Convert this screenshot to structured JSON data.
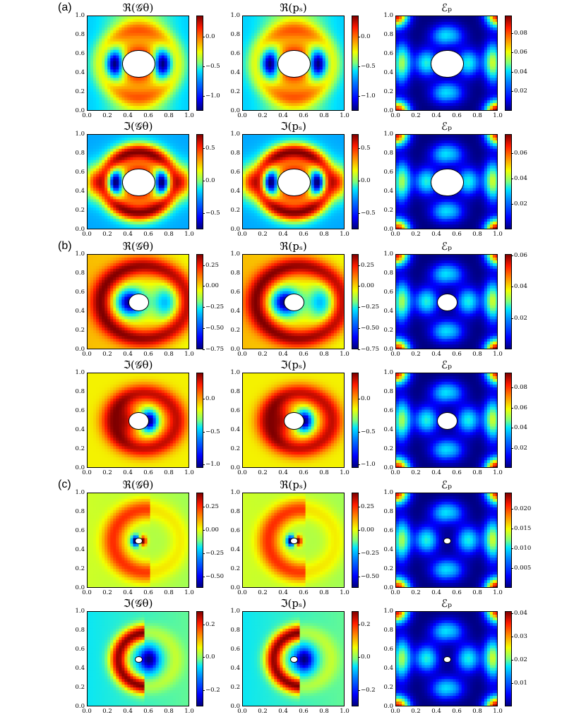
{
  "panel_labels": [
    "(a)",
    "(b)",
    "(c)"
  ],
  "colormap": [
    "#00007f",
    "#0000ff",
    "#0080ff",
    "#00e5ff",
    "#7dff7a",
    "#f3ff00",
    "#ff8c00",
    "#ff1a00",
    "#7f0000"
  ],
  "axis_ticks": {
    "x": [
      "0.0",
      "0.2",
      "0.4",
      "0.6",
      "0.8",
      "1.0"
    ],
    "y": [
      "0.0",
      "0.2",
      "0.4",
      "0.6",
      "0.8",
      "1.0"
    ]
  },
  "chart_data": [
    {
      "type": "heatmap",
      "panel": "(a)",
      "title": "ℜ(𝒢θ)",
      "xlim": [
        0,
        1
      ],
      "ylim": [
        0,
        1
      ],
      "cbar_ticks": [
        "0.0",
        "−0.5",
        "−1.0"
      ],
      "cbar_values": [
        0.0,
        -0.5,
        -1.0
      ],
      "cbar_range": [
        -1.25,
        0.35
      ],
      "hole": {
        "cx": 0.5,
        "cy": 0.5,
        "r": 0.16
      },
      "pattern": "dipole-real"
    },
    {
      "type": "heatmap",
      "panel": "(a)",
      "title": "ℜ(pₛ)",
      "xlim": [
        0,
        1
      ],
      "ylim": [
        0,
        1
      ],
      "cbar_ticks": [
        "0.0",
        "−0.5",
        "−1.0"
      ],
      "cbar_values": [
        0.0,
        -0.5,
        -1.0
      ],
      "cbar_range": [
        -1.25,
        0.35
      ],
      "hole": {
        "cx": 0.5,
        "cy": 0.5,
        "r": 0.16
      },
      "pattern": "dipole-real"
    },
    {
      "type": "heatmap",
      "panel": "(a)",
      "title": "ℰₚ",
      "xlim": [
        0,
        1
      ],
      "ylim": [
        0,
        1
      ],
      "cbar_ticks": [
        "0.08",
        "0.06",
        "0.04",
        "0.02"
      ],
      "cbar_values": [
        0.08,
        0.06,
        0.04,
        0.02
      ],
      "cbar_range": [
        0.0,
        0.098
      ],
      "hole": {
        "cx": 0.5,
        "cy": 0.5,
        "r": 0.16
      },
      "pattern": "error"
    },
    {
      "type": "heatmap",
      "panel": "(a)",
      "title": "ℑ(𝒢θ)",
      "xlim": [
        0,
        1
      ],
      "ylim": [
        0,
        1
      ],
      "cbar_ticks": [
        "0.5",
        "0.0",
        "−0.5"
      ],
      "cbar_values": [
        0.5,
        0.0,
        -0.5
      ],
      "cbar_range": [
        -0.75,
        0.72
      ],
      "hole": {
        "cx": 0.5,
        "cy": 0.5,
        "r": 0.16
      },
      "pattern": "dipole-imag"
    },
    {
      "type": "heatmap",
      "panel": "(a)",
      "title": "ℑ(pₛ)",
      "xlim": [
        0,
        1
      ],
      "ylim": [
        0,
        1
      ],
      "cbar_ticks": [
        "0.5",
        "0.0",
        "−0.5"
      ],
      "cbar_values": [
        0.5,
        0.0,
        -0.5
      ],
      "cbar_range": [
        -0.75,
        0.72
      ],
      "hole": {
        "cx": 0.5,
        "cy": 0.5,
        "r": 0.16
      },
      "pattern": "dipole-imag"
    },
    {
      "type": "heatmap",
      "panel": "(a)",
      "title": "ℰₚ",
      "xlim": [
        0,
        1
      ],
      "ylim": [
        0,
        1
      ],
      "cbar_ticks": [
        "0.06",
        "0.04",
        "0.02"
      ],
      "cbar_values": [
        0.06,
        0.04,
        0.02
      ],
      "cbar_range": [
        0.0,
        0.075
      ],
      "hole": {
        "cx": 0.5,
        "cy": 0.5,
        "r": 0.16
      },
      "pattern": "error"
    },
    {
      "type": "heatmap",
      "panel": "(b)",
      "title": "ℜ(𝒢θ)",
      "xlim": [
        0,
        1
      ],
      "ylim": [
        0,
        1
      ],
      "cbar_ticks": [
        "0.25",
        "0.00",
        "−0.25",
        "−0.50",
        "−0.75"
      ],
      "cbar_values": [
        0.25,
        0.0,
        -0.25,
        -0.5,
        -0.75
      ],
      "cbar_range": [
        -0.75,
        0.38
      ],
      "hole": {
        "cx": 0.5,
        "cy": 0.5,
        "r": 0.1
      },
      "pattern": "ring-real"
    },
    {
      "type": "heatmap",
      "panel": "(b)",
      "title": "ℜ(pₛ)",
      "xlim": [
        0,
        1
      ],
      "ylim": [
        0,
        1
      ],
      "cbar_ticks": [
        "0.25",
        "0.00",
        "−0.25",
        "−0.50",
        "−0.75"
      ],
      "cbar_values": [
        0.25,
        0.0,
        -0.25,
        -0.5,
        -0.75
      ],
      "cbar_range": [
        -0.75,
        0.38
      ],
      "hole": {
        "cx": 0.5,
        "cy": 0.5,
        "r": 0.1
      },
      "pattern": "ring-real"
    },
    {
      "type": "heatmap",
      "panel": "(b)",
      "title": "ℰₚ",
      "xlim": [
        0,
        1
      ],
      "ylim": [
        0,
        1
      ],
      "cbar_ticks": [
        "0.06",
        "0.04",
        "0.02"
      ],
      "cbar_values": [
        0.06,
        0.04,
        0.02
      ],
      "cbar_range": [
        0.0,
        0.061
      ],
      "hole": {
        "cx": 0.5,
        "cy": 0.5,
        "r": 0.1
      },
      "pattern": "error"
    },
    {
      "type": "heatmap",
      "panel": "(b)",
      "title": "ℑ(𝒢θ)",
      "xlim": [
        0,
        1
      ],
      "ylim": [
        0,
        1
      ],
      "cbar_ticks": [
        "0.0",
        "−0.5",
        "−1.0"
      ],
      "cbar_values": [
        0.0,
        -0.5,
        -1.0
      ],
      "cbar_range": [
        -1.05,
        0.4
      ],
      "hole": {
        "cx": 0.5,
        "cy": 0.5,
        "r": 0.1
      },
      "pattern": "ring-imag"
    },
    {
      "type": "heatmap",
      "panel": "(b)",
      "title": "ℑ(pₛ)",
      "xlim": [
        0,
        1
      ],
      "ylim": [
        0,
        1
      ],
      "cbar_ticks": [
        "0.0",
        "−0.5",
        "−1.0"
      ],
      "cbar_values": [
        0.0,
        -0.5,
        -1.0
      ],
      "cbar_range": [
        -1.05,
        0.4
      ],
      "hole": {
        "cx": 0.5,
        "cy": 0.5,
        "r": 0.1
      },
      "pattern": "ring-imag"
    },
    {
      "type": "heatmap",
      "panel": "(b)",
      "title": "ℰₚ",
      "xlim": [
        0,
        1
      ],
      "ylim": [
        0,
        1
      ],
      "cbar_ticks": [
        "0.08",
        "0.06",
        "0.04",
        "0.02"
      ],
      "cbar_values": [
        0.08,
        0.06,
        0.04,
        0.02
      ],
      "cbar_range": [
        0.0,
        0.095
      ],
      "hole": {
        "cx": 0.5,
        "cy": 0.5,
        "r": 0.1
      },
      "pattern": "error"
    },
    {
      "type": "heatmap",
      "panel": "(c)",
      "title": "ℜ(𝒢θ)",
      "xlim": [
        0,
        1
      ],
      "ylim": [
        0,
        1
      ],
      "cbar_ticks": [
        "0.25",
        "0.00",
        "−0.25",
        "−0.50"
      ],
      "cbar_values": [
        0.25,
        0.0,
        -0.25,
        -0.5
      ],
      "cbar_range": [
        -0.62,
        0.4
      ],
      "hole": {
        "cx": 0.5,
        "cy": 0.5,
        "r": 0.035
      },
      "pattern": "crescent-real"
    },
    {
      "type": "heatmap",
      "panel": "(c)",
      "title": "ℜ(pₛ)",
      "xlim": [
        0,
        1
      ],
      "ylim": [
        0,
        1
      ],
      "cbar_ticks": [
        "0.25",
        "0.00",
        "−0.25",
        "−0.50"
      ],
      "cbar_values": [
        0.25,
        0.0,
        -0.25,
        -0.5
      ],
      "cbar_range": [
        -0.62,
        0.4
      ],
      "hole": {
        "cx": 0.5,
        "cy": 0.5,
        "r": 0.035
      },
      "pattern": "crescent-real"
    },
    {
      "type": "heatmap",
      "panel": "(c)",
      "title": "ℰₚ",
      "xlim": [
        0,
        1
      ],
      "ylim": [
        0,
        1
      ],
      "cbar_ticks": [
        "0.020",
        "0.015",
        "0.010",
        "0.005"
      ],
      "cbar_values": [
        0.02,
        0.015,
        0.01,
        0.005
      ],
      "cbar_range": [
        0.0,
        0.024
      ],
      "hole": {
        "cx": 0.5,
        "cy": 0.5,
        "r": 0.035
      },
      "pattern": "error"
    },
    {
      "type": "heatmap",
      "panel": "(c)",
      "title": "ℑ(𝒢θ)",
      "xlim": [
        0,
        1
      ],
      "ylim": [
        0,
        1
      ],
      "cbar_ticks": [
        "0.2",
        "0.0",
        "−0.2"
      ],
      "cbar_values": [
        0.2,
        0.0,
        -0.2
      ],
      "cbar_range": [
        -0.3,
        0.28
      ],
      "hole": {
        "cx": 0.5,
        "cy": 0.5,
        "r": 0.035
      },
      "pattern": "crescent-imag"
    },
    {
      "type": "heatmap",
      "panel": "(c)",
      "title": "ℑ(pₛ)",
      "xlim": [
        0,
        1
      ],
      "ylim": [
        0,
        1
      ],
      "cbar_ticks": [
        "0.2",
        "0.0",
        "−0.2"
      ],
      "cbar_values": [
        0.2,
        0.0,
        -0.2
      ],
      "cbar_range": [
        -0.3,
        0.28
      ],
      "hole": {
        "cx": 0.5,
        "cy": 0.5,
        "r": 0.035
      },
      "pattern": "crescent-imag"
    },
    {
      "type": "heatmap",
      "panel": "(c)",
      "title": "ℰₚ",
      "xlim": [
        0,
        1
      ],
      "ylim": [
        0,
        1
      ],
      "cbar_ticks": [
        "0.04",
        "0.03",
        "0.02",
        "0.01"
      ],
      "cbar_values": [
        0.04,
        0.03,
        0.02,
        0.01
      ],
      "cbar_range": [
        0.0,
        0.041
      ],
      "hole": {
        "cx": 0.5,
        "cy": 0.5,
        "r": 0.035
      },
      "pattern": "error"
    }
  ]
}
